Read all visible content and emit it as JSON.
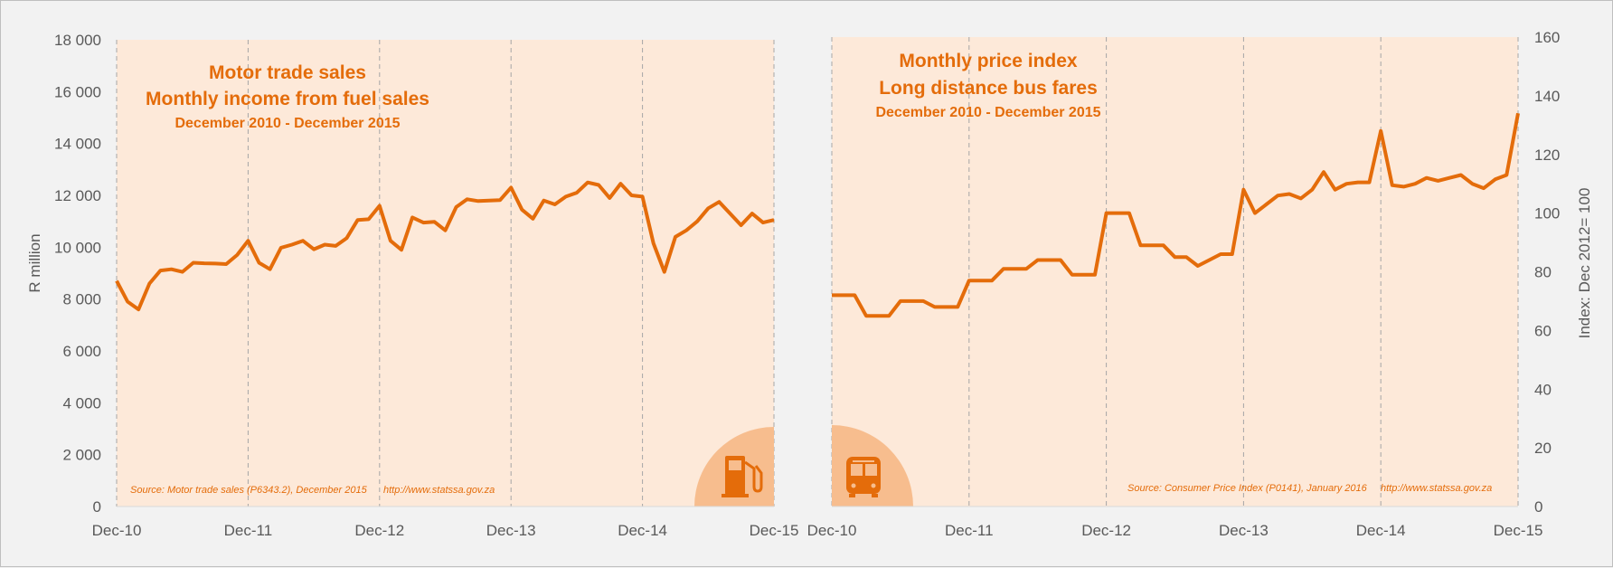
{
  "chart_data": [
    {
      "type": "line",
      "title": "Motor trade sales",
      "subtitle": "Monthly income from fuel sales",
      "period": "December 2010 - December 2015",
      "xlabel": "",
      "ylabel": "R million",
      "ylim": [
        0,
        18000
      ],
      "yticks": [
        "0",
        "2 000",
        "4 000",
        "6 000",
        "8 000",
        "10 000",
        "12 000",
        "14 000",
        "16 000",
        "18 000"
      ],
      "ytick_values": [
        0,
        2000,
        4000,
        6000,
        8000,
        10000,
        12000,
        14000,
        16000,
        18000
      ],
      "xticks": [
        "Dec-10",
        "Dec-11",
        "Dec-12",
        "Dec-13",
        "Dec-14",
        "Dec-15"
      ],
      "source": "Source: Motor trade sales (P6343.2), December 2015",
      "url": "http://www.statssa.gov.za",
      "icon": "fuel-pump-icon",
      "series": [
        {
          "name": "Monthly income from fuel sales",
          "values": [
            8700,
            7900,
            7600,
            8600,
            9100,
            9150,
            9050,
            9400,
            9380,
            9370,
            9350,
            9700,
            10250,
            9400,
            9150,
            9980,
            10100,
            10250,
            9920,
            10100,
            10050,
            10350,
            11050,
            11080,
            11600,
            10250,
            9900,
            11150,
            10950,
            10980,
            10650,
            11550,
            11850,
            11780,
            11800,
            11820,
            12300,
            11450,
            11100,
            11800,
            11650,
            11950,
            12100,
            12500,
            12400,
            11900,
            12450,
            12000,
            11950,
            10150,
            9050,
            10400,
            10650,
            11000,
            11500,
            11750,
            11300,
            10850,
            11300,
            10950,
            11050
          ]
        }
      ]
    },
    {
      "type": "line",
      "title": "Monthly price index",
      "subtitle": "Long distance bus fares",
      "period": "December 2010 - December 2015",
      "xlabel": "",
      "ylabel": "Index: Dec 2012= 100",
      "ylim": [
        0,
        160
      ],
      "yticks": [
        "0",
        "20",
        "40",
        "60",
        "80",
        "100",
        "120",
        "140",
        "160"
      ],
      "ytick_values": [
        0,
        20,
        40,
        60,
        80,
        100,
        120,
        140,
        160
      ],
      "xticks": [
        "Dec-10",
        "Dec-11",
        "Dec-12",
        "Dec-13",
        "Dec-14",
        "Dec-15"
      ],
      "source": "Source: Consumer Price Index (P0141), January 2016",
      "url": "http://www.statssa.gov.za",
      "icon": "bus-icon",
      "series": [
        {
          "name": "Long distance bus fares",
          "values": [
            72,
            72,
            72,
            65,
            65,
            65,
            70,
            70,
            70,
            68,
            68,
            68,
            77,
            77,
            77,
            81,
            81,
            81,
            84,
            84,
            84,
            79,
            79,
            79,
            100,
            100,
            100,
            89,
            89,
            89,
            85,
            85,
            82,
            84,
            86,
            86,
            108,
            100,
            103,
            106,
            106.5,
            105,
            108,
            114,
            108,
            110,
            110.5,
            110.5,
            128,
            109.5,
            109,
            110,
            112,
            111,
            112,
            113,
            110,
            108.5,
            111.5,
            113,
            134
          ]
        }
      ]
    }
  ],
  "colors": {
    "line": "#e46c0a",
    "plot_bg": "#fde9d9",
    "icon_circle": "#f7bd8e",
    "page_bg": "#f2f2f2",
    "gridline": "#a6a6a6",
    "tick_text": "#595959"
  }
}
